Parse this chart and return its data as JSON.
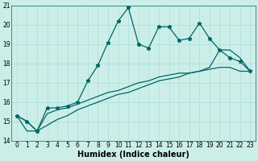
{
  "title": "",
  "xlabel": "Humidex (Indice chaleur)",
  "bg_color": "#cceee8",
  "grid_color": "#aadddd",
  "line_color": "#006666",
  "x": [
    0,
    1,
    2,
    3,
    4,
    5,
    6,
    7,
    8,
    9,
    10,
    11,
    12,
    13,
    14,
    15,
    16,
    17,
    18,
    19,
    20,
    21,
    22,
    23
  ],
  "series1": [
    15.3,
    15.0,
    14.5,
    15.7,
    15.7,
    15.8,
    16.0,
    17.1,
    17.9,
    19.1,
    20.2,
    20.9,
    19.0,
    18.8,
    19.9,
    19.9,
    19.2,
    19.3,
    20.1,
    19.3,
    18.7,
    18.3,
    18.1,
    17.6
  ],
  "series2": [
    15.3,
    15.0,
    14.5,
    15.4,
    15.6,
    15.7,
    15.9,
    16.1,
    16.3,
    16.5,
    16.6,
    16.8,
    17.0,
    17.1,
    17.3,
    17.4,
    17.5,
    17.5,
    17.6,
    17.7,
    17.8,
    17.8,
    17.6,
    17.6
  ],
  "series3": [
    15.3,
    14.5,
    14.5,
    14.8,
    15.1,
    15.3,
    15.6,
    15.8,
    16.0,
    16.2,
    16.4,
    16.5,
    16.7,
    16.9,
    17.1,
    17.2,
    17.3,
    17.5,
    17.6,
    17.8,
    18.7,
    18.7,
    18.3,
    17.6
  ],
  "ylim": [
    14,
    21
  ],
  "xlim": [
    -0.5,
    23.5
  ],
  "yticks": [
    14,
    15,
    16,
    17,
    18,
    19,
    20,
    21
  ],
  "xticks": [
    0,
    1,
    2,
    3,
    4,
    5,
    6,
    7,
    8,
    9,
    10,
    11,
    12,
    13,
    14,
    15,
    16,
    17,
    18,
    19,
    20,
    21,
    22,
    23
  ],
  "xlabel_fontsize": 7,
  "tick_fontsize": 5.5,
  "linewidth": 0.9,
  "marker_size": 3.5
}
